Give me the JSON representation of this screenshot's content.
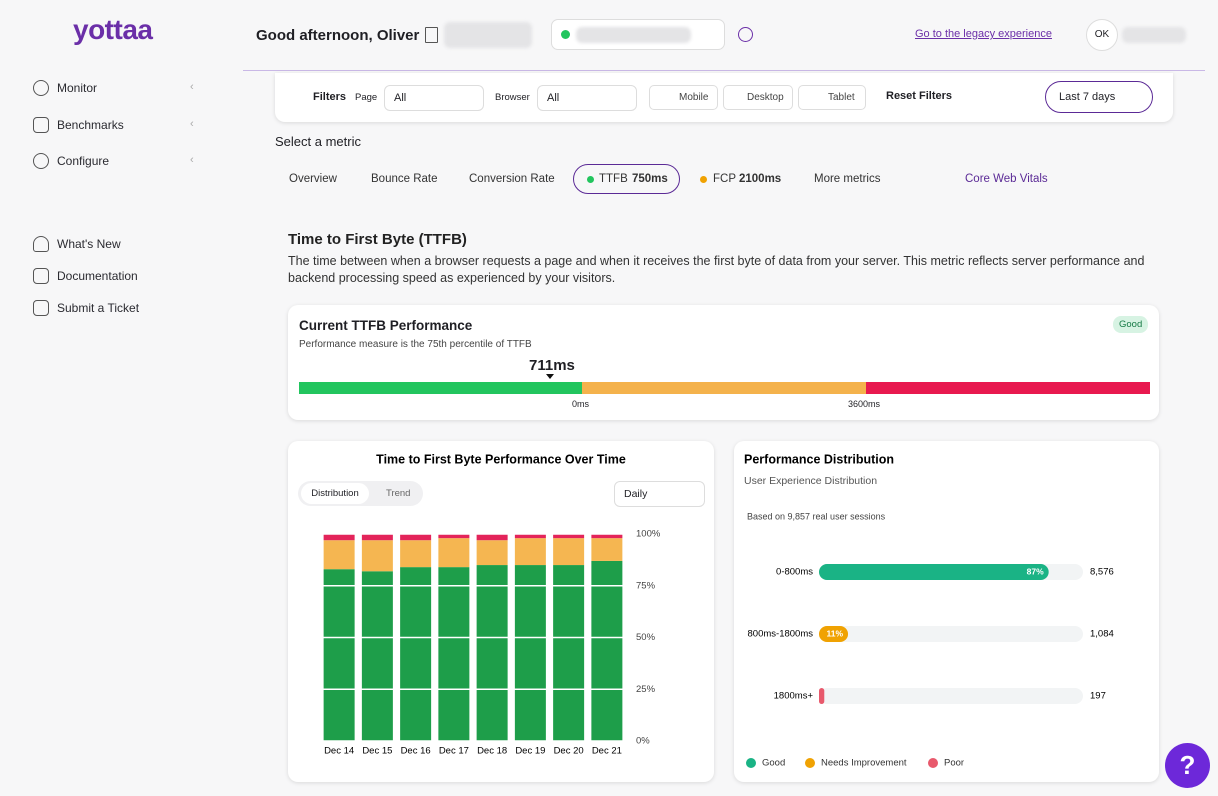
{
  "sidebar": {
    "logo": "yottaa",
    "nav": [
      "Monitor",
      "Benchmarks",
      "Configure"
    ],
    "links": [
      "What's New",
      "Documentation",
      "Submit a Ticket"
    ]
  },
  "header": {
    "greeting": "Good afternoon, Oliver",
    "legacy_link": "Go to the legacy experience",
    "avatar": "OK"
  },
  "filters": {
    "label": "Filters",
    "page_label": "Page",
    "page_value": "All",
    "browser_label": "Browser",
    "browser_value": "All",
    "devices": [
      "Mobile",
      "Desktop",
      "Tablet"
    ],
    "reset": "Reset Filters",
    "range": "Last 7 days"
  },
  "metrics": {
    "prompt": "Select a metric",
    "tabs": [
      "Overview",
      "Bounce Rate",
      "Conversion Rate"
    ],
    "ttfb_label": "TTFB",
    "ttfb_value": "750ms",
    "fcp_label": "FCP",
    "fcp_value": "2100ms",
    "more": "More metrics",
    "cwv": "Core Web Vitals"
  },
  "section": {
    "title": "Time to First Byte (TTFB)",
    "description": "The time between when a browser requests a page and when it receives the first byte of data from your server. This metric reflects server performance and backend processing speed as experienced by your visitors."
  },
  "current": {
    "title": "Current TTFB Performance",
    "subtitle": "Performance measure is the 75th percentile of TTFB",
    "status": "Good",
    "value": "711ms",
    "thresholds": [
      "0ms",
      "3600ms"
    ]
  },
  "trend_controls": {
    "tabs": [
      "Distribution",
      "Trend"
    ],
    "interval": "Daily"
  },
  "chart_data": [
    {
      "type": "bar",
      "stacked": true,
      "title": "Time to First Byte Performance Over Time",
      "categories": [
        "Dec 14",
        "Dec 15",
        "Dec 16",
        "Dec 17",
        "Dec 18",
        "Dec 19",
        "Dec 20",
        "Dec 21"
      ],
      "series": [
        {
          "color": "#1e9e4a",
          "values": [
            83,
            82,
            84,
            84,
            85,
            85,
            85,
            87
          ]
        },
        {
          "color": "#f5b651",
          "values": [
            14,
            15,
            13,
            14,
            12,
            13,
            13,
            11
          ]
        },
        {
          "color": "#e3245a",
          "values": [
            3,
            3,
            3,
            2,
            3,
            2,
            2,
            2
          ]
        }
      ],
      "ylim": [
        0,
        100
      ],
      "yticks": [
        {
          "value": 0,
          "label": "0%"
        },
        {
          "value": 25,
          "label": "25%"
        },
        {
          "value": 50,
          "label": "50%"
        },
        {
          "value": 75,
          "label": "75%"
        },
        {
          "value": 100,
          "label": "100%"
        }
      ],
      "grid": true
    },
    {
      "type": "hbar",
      "title": "Performance Distribution",
      "subtitle": "User Experience Distribution",
      "note": "Based on 9,857 real user sessions",
      "categories": [
        "0-800ms",
        "800ms-1800ms",
        "1800ms+"
      ],
      "values": [
        87,
        11,
        2
      ],
      "value_labels": [
        "87%",
        "11%",
        null
      ],
      "colors": [
        "#1ab385",
        "#f0a202",
        "#e8596c"
      ],
      "counts": [
        8576,
        1084,
        197
      ],
      "count_labels": [
        "8,576",
        "1,084",
        "197"
      ],
      "xlim": [
        0,
        100
      ],
      "legend": [
        {
          "name": "Good",
          "color": "#1ab385"
        },
        {
          "name": "Needs Improvement",
          "color": "#f0a202"
        },
        {
          "name": "Poor",
          "color": "#e8596c"
        }
      ]
    }
  ]
}
